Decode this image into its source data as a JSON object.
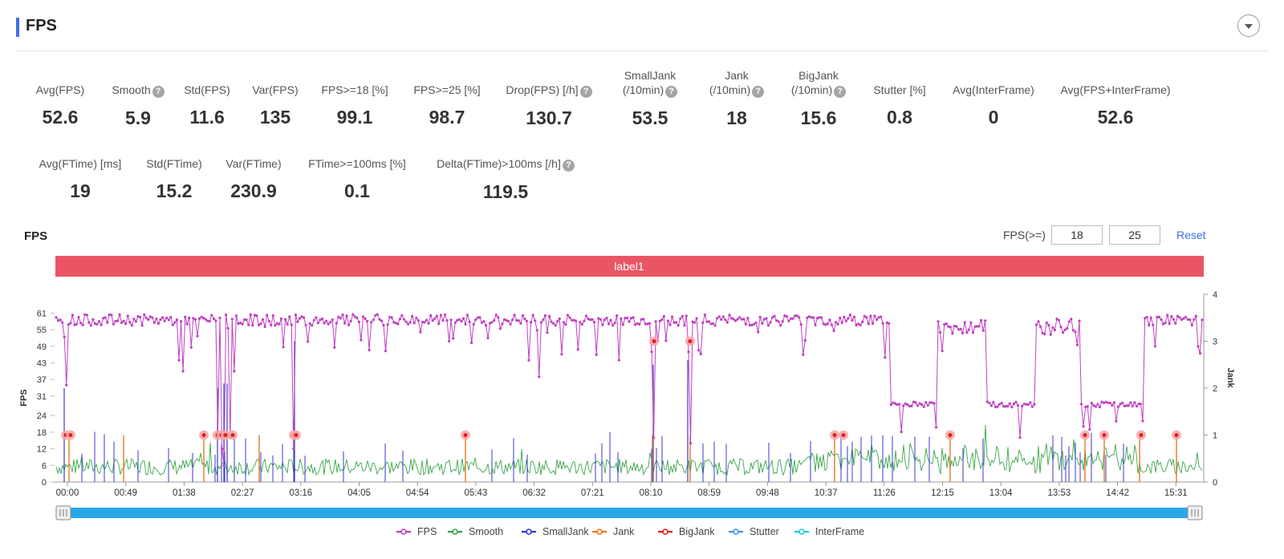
{
  "header": {
    "title": "FPS"
  },
  "metrics_row1": [
    {
      "label": "Avg(FPS)",
      "value": "52.6",
      "help": false
    },
    {
      "label": "Smooth",
      "value": "5.9",
      "help": true
    },
    {
      "label": "Std(FPS)",
      "value": "11.6",
      "help": false
    },
    {
      "label": "Var(FPS)",
      "value": "135",
      "help": false
    },
    {
      "label": "FPS>=18 [%]",
      "value": "99.1",
      "help": false
    },
    {
      "label": "FPS>=25 [%]",
      "value": "98.7",
      "help": false
    },
    {
      "label": "Drop(FPS) [/h]",
      "value": "130.7",
      "help": true
    },
    {
      "label": "SmallJank",
      "label2": "(/10min)",
      "value": "53.5",
      "help": true
    },
    {
      "label": "Jank",
      "label2": "(/10min)",
      "value": "18",
      "help": true
    },
    {
      "label": "BigJank",
      "label2": "(/10min)",
      "value": "15.6",
      "help": true
    },
    {
      "label": "Stutter [%]",
      "value": "0.8",
      "help": false
    },
    {
      "label": "Avg(InterFrame)",
      "value": "0",
      "help": false
    },
    {
      "label": "Avg(FPS+InterFrame)",
      "value": "52.6",
      "help": false
    }
  ],
  "metrics_row2": [
    {
      "label": "Avg(FTime) [ms]",
      "value": "19",
      "help": false
    },
    {
      "label": "Std(FTime)",
      "value": "15.2",
      "help": false
    },
    {
      "label": "Var(FTime)",
      "value": "230.9",
      "help": false
    },
    {
      "label": "FTime>=100ms [%]",
      "value": "0.1",
      "help": false
    },
    {
      "label": "Delta(FTime)>100ms [/h]",
      "value": "119.5",
      "help": true
    }
  ],
  "controls": {
    "chart_title": "FPS",
    "threshold_label": "FPS(>=)",
    "threshold_low": "18",
    "threshold_high": "25",
    "reset_label": "Reset"
  },
  "chart_data": {
    "type": "line",
    "label_band": "label1",
    "ylabel_left": "FPS",
    "ylabel_right": "Jank",
    "y_left_ticks": [
      0,
      6,
      12,
      18,
      24,
      31,
      37,
      43,
      49,
      55,
      61
    ],
    "y_right_ticks": [
      0,
      1,
      2,
      3,
      4
    ],
    "x_ticks": [
      "00:00",
      "00:49",
      "01:38",
      "02:27",
      "03:16",
      "04:05",
      "04:54",
      "05:43",
      "06:32",
      "07:21",
      "08:10",
      "08:59",
      "09:48",
      "10:37",
      "11:26",
      "12:15",
      "13:04",
      "13:53",
      "14:42",
      "15:31"
    ],
    "x_range_seconds": [
      0,
      960
    ],
    "legend": [
      {
        "name": "FPS",
        "color": "#c040c0"
      },
      {
        "name": "Smooth",
        "color": "#3aa64a"
      },
      {
        "name": "SmallJank",
        "color": "#3838d0"
      },
      {
        "name": "Jank",
        "color": "#e87722"
      },
      {
        "name": "BigJank",
        "color": "#e02020"
      },
      {
        "name": "Stutter",
        "color": "#4a90e8"
      },
      {
        "name": "InterFrame",
        "color": "#28c8e0"
      }
    ],
    "fps_segments": [
      {
        "t": [
          0,
          270
        ],
        "level": 58.5
      },
      {
        "t": [
          270,
          300
        ],
        "level": 50
      },
      {
        "t": [
          300,
          560
        ],
        "level": 58.5
      },
      {
        "t": [
          560,
          700
        ],
        "level": 58
      },
      {
        "t": [
          700,
          930
        ],
        "level": 58.5
      },
      {
        "t": [
          930,
          1050
        ],
        "level": 58
      },
      {
        "t": [
          1055,
          1100
        ],
        "level": 57.5
      },
      {
        "t": [
          1105,
          1200
        ],
        "level": 58
      },
      {
        "t": [
          1220,
          1250
        ],
        "level": 28
      },
      {
        "t": [
          1250,
          1290
        ],
        "level": 56
      },
      {
        "t": [
          1300,
          1350
        ],
        "level": 59
      },
      {
        "t": [
          1360,
          1420
        ],
        "level": 28
      },
      {
        "t": [
          1425,
          1470
        ],
        "level": 56
      },
      {
        "t": [
          1480,
          1530
        ],
        "level": 28
      },
      {
        "t": [
          1540,
          1575
        ],
        "level": 58
      }
    ],
    "fps_dips": [
      {
        "t": 10,
        "value": 42
      },
      {
        "t": 160,
        "value": 44
      },
      {
        "t": 200,
        "value": 46
      },
      {
        "t": 208,
        "value": 17
      },
      {
        "t": 220,
        "value": 10
      },
      {
        "t": 233,
        "value": 20
      },
      {
        "t": 296,
        "value": 49
      },
      {
        "t": 372,
        "value": 50
      },
      {
        "t": 520,
        "value": 52
      },
      {
        "t": 575,
        "value": 40
      },
      {
        "t": 733,
        "value": 17
      },
      {
        "t": 790,
        "value": 17
      },
      {
        "t": 920,
        "value": 50
      },
      {
        "t": 980,
        "value": 50
      },
      {
        "t": 1150,
        "value": 45
      }
    ],
    "bigjank_markers_seconds": [
      8,
      12,
      122,
      128,
      133,
      142,
      145,
      150,
      180,
      183,
      278,
      478,
      516,
      640,
      650,
      712,
      850,
      865,
      900
    ],
    "jank_markers_seconds": [
      6,
      58,
      180,
      215,
      350,
      510,
      670,
      740,
      780
    ]
  }
}
